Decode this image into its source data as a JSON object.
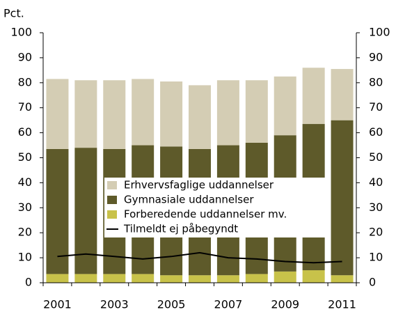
{
  "chart_data": {
    "type": "bar",
    "stacked": true,
    "y_label": "Pct.",
    "categories": [
      "2001",
      null,
      "2003",
      null,
      "2005",
      null,
      "2007",
      null,
      "2009",
      null,
      "2011"
    ],
    "series": [
      {
        "name": "Erhvervsfaglige uddannelser",
        "color": "#d4cdb4",
        "values": [
          28,
          27,
          27.5,
          26.5,
          26,
          25.5,
          26,
          25,
          23.5,
          22.5,
          20.5
        ]
      },
      {
        "name": "Gymnasiale uddannelser",
        "color": "#5e5a2a",
        "values": [
          50,
          50.5,
          50,
          51.5,
          51.5,
          50.5,
          52,
          52.5,
          54.5,
          58.5,
          62
        ]
      },
      {
        "name": "Forberedende uddannelser mv.",
        "color": "#c8c24a",
        "values": [
          3.5,
          3.5,
          3.5,
          3.5,
          3,
          3,
          3,
          3.5,
          4.5,
          5,
          3
        ]
      },
      {
        "name": "Tilmeldt ej påbegyndt",
        "type": "line",
        "color": "#000000",
        "values": [
          10.5,
          11.5,
          10.5,
          9.5,
          10.5,
          12,
          10,
          9.5,
          8.5,
          8,
          8.5
        ]
      }
    ],
    "ylim": [
      0,
      100
    ],
    "yticks": [
      0,
      10,
      20,
      30,
      40,
      50,
      60,
      70,
      80,
      90,
      100
    ],
    "y2lim": [
      0,
      100
    ],
    "y2ticks": [
      0,
      10,
      20,
      30,
      40,
      50,
      60,
      70,
      80,
      90,
      100
    ],
    "grid": false
  }
}
